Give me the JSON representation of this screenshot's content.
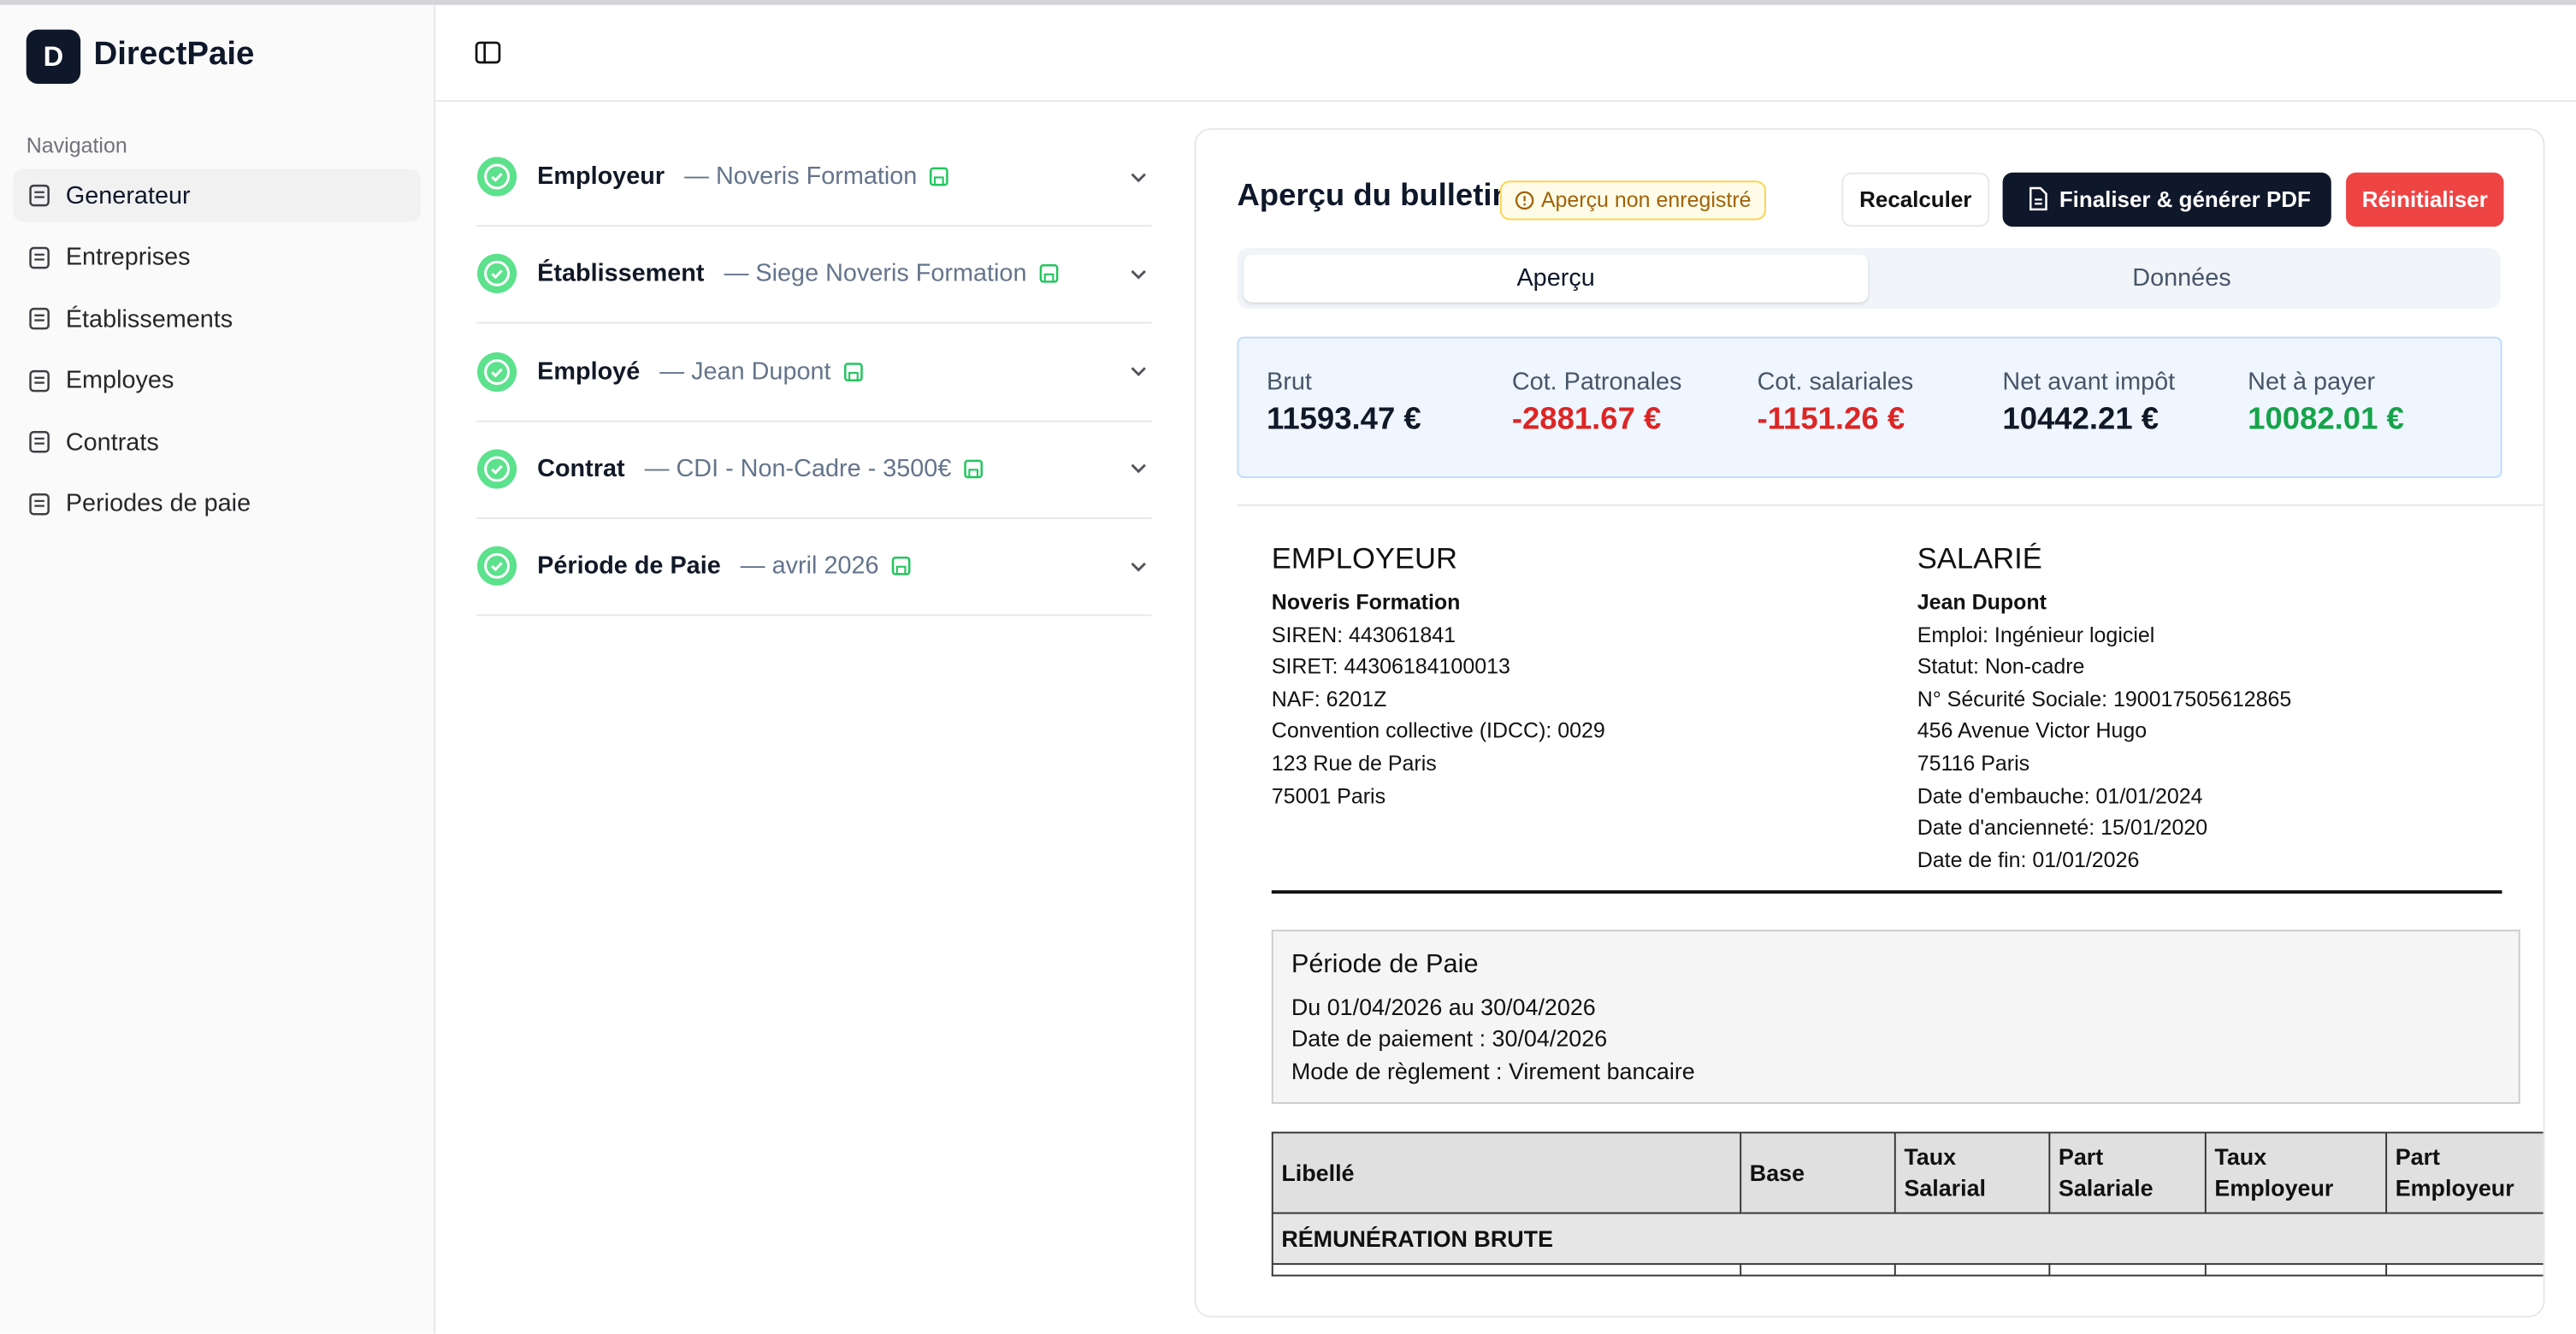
{
  "sidebar": {
    "logo": "D",
    "brand": "DirectPaie",
    "section": "Navigation",
    "items": [
      "Generateur",
      "Entreprises",
      "Établissements",
      "Employes",
      "Contrats",
      "Periodes de paie"
    ]
  },
  "steps": [
    {
      "title": "Employeur",
      "detail": "— Noveris Formation"
    },
    {
      "title": "Établissement",
      "detail": "— Siege Noveris Formation"
    },
    {
      "title": "Employé",
      "detail": "— Jean Dupont"
    },
    {
      "title": "Contrat",
      "detail": "— CDI - Non-Cadre - 3500€"
    },
    {
      "title": "Période de Paie",
      "detail": "— avril 2026"
    }
  ],
  "preview": {
    "title": "Aperçu du bulletin",
    "badge": "Aperçu non enregistré",
    "buttons": [
      "Recalculer",
      "Finaliser & générer PDF",
      "Réinitialiser"
    ],
    "tabs": [
      "Aperçu",
      "Données"
    ],
    "summary": [
      {
        "label": "Brut",
        "value": "11593.47 €"
      },
      {
        "label": "Cot. Patronales",
        "value": "-2881.67 €"
      },
      {
        "label": "Cot. salariales",
        "value": "-1151.26 €"
      },
      {
        "label": "Net avant impôt",
        "value": "10442.21 €"
      },
      {
        "label": "Net à payer",
        "value": "10082.01 €"
      }
    ],
    "employer": {
      "heading": "EMPLOYEUR",
      "name": "Noveris Formation",
      "lines": [
        "SIREN: 443061841",
        "SIRET: 44306184100013",
        "NAF: 6201Z",
        "Convention collective (IDCC): 0029",
        "123 Rue de Paris",
        "75001 Paris"
      ]
    },
    "employee": {
      "heading": "SALARIÉ",
      "name": "Jean Dupont",
      "lines": [
        "Emploi: Ingénieur logiciel",
        "Statut: Non-cadre",
        "N° Sécurité Sociale: 190017505612865",
        "456 Avenue Victor Hugo",
        "75116 Paris",
        "Date d'embauche: 01/01/2024",
        "Date d'ancienneté: 15/01/2020",
        "Date de fin: 01/01/2026"
      ]
    },
    "period": {
      "heading": "Période de Paie",
      "lines": [
        "Du 01/04/2026 au 30/04/2026",
        "Date de paiement : 30/04/2026",
        "Mode de règlement : Virement bancaire"
      ]
    },
    "table": {
      "columns": [
        "Libellé",
        "Base",
        "Taux Salarial",
        "Part Salariale",
        "Taux Employeur",
        "Part Employeur"
      ],
      "sections": [
        "RÉMUNÉRATION BRUTE"
      ]
    }
  }
}
